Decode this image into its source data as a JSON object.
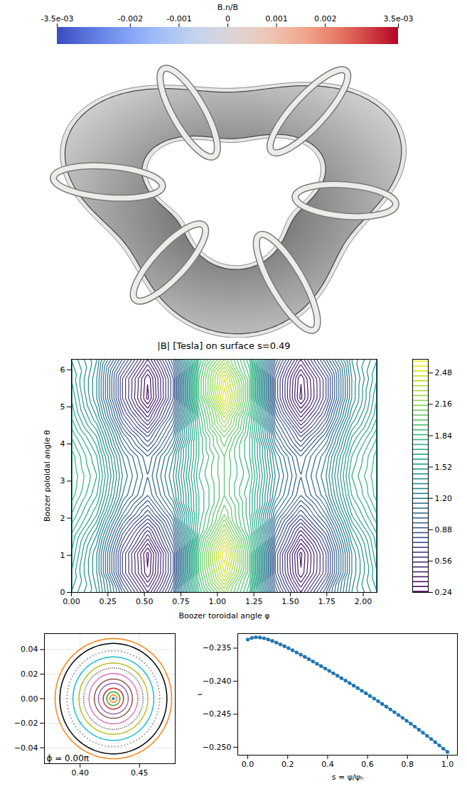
{
  "chart_data": [
    {
      "type": "surface",
      "colorbar": {
        "label": "B.n/B",
        "range": [
          -0.0035,
          0.0035
        ],
        "ticks": [
          {
            "value": -0.0035,
            "label": "-3.5e-03"
          },
          -0.002,
          -0.001,
          0,
          0.001,
          0.002,
          {
            "value": 0.0035,
            "label": "3.5e-03"
          }
        ]
      }
    },
    {
      "type": "contour",
      "title": "|B| [Tesla] on surface s=0.49",
      "x_label": "Boozer toroidal angle φ",
      "y_label": "Boozer poloidal angle θ",
      "x": [
        0,
        0.1745,
        0.349,
        0.5236,
        0.6981,
        0.8727,
        1.0472,
        1.2217,
        1.3963,
        1.5708,
        1.7453,
        1.9199,
        2.0944
      ],
      "y": [
        0,
        0.5236,
        1.0472,
        1.5708,
        2.0944,
        2.618,
        3.1416,
        3.6652,
        4.1888,
        4.7124,
        5.236,
        5.7596,
        6.2832
      ],
      "z": [
        [
          1.55,
          1.35,
          0.9,
          0.5,
          0.95,
          1.8,
          2.2,
          1.8,
          0.95,
          0.5,
          0.9,
          1.35,
          1.55
        ],
        [
          1.6,
          1.3,
          0.7,
          0.3,
          0.8,
          1.9,
          2.45,
          1.9,
          0.8,
          0.3,
          0.7,
          1.3,
          1.6
        ],
        [
          1.65,
          1.3,
          0.7,
          0.28,
          0.8,
          1.9,
          2.55,
          1.9,
          0.8,
          0.28,
          0.7,
          1.3,
          1.65
        ],
        [
          1.7,
          1.4,
          0.85,
          0.5,
          0.95,
          1.8,
          2.3,
          1.8,
          0.95,
          0.5,
          0.85,
          1.4,
          1.7
        ],
        [
          1.8,
          1.55,
          1.05,
          0.75,
          1.1,
          1.75,
          2.1,
          1.75,
          1.1,
          0.75,
          1.05,
          1.55,
          1.8
        ],
        [
          1.88,
          1.65,
          1.2,
          0.95,
          1.25,
          1.75,
          2.0,
          1.75,
          1.25,
          0.95,
          1.2,
          1.65,
          1.88
        ],
        [
          1.9,
          1.7,
          1.25,
          1.0,
          1.3,
          1.8,
          2.0,
          1.8,
          1.3,
          1.0,
          1.25,
          1.7,
          1.9
        ],
        [
          1.88,
          1.65,
          1.2,
          0.95,
          1.25,
          1.75,
          2.0,
          1.75,
          1.25,
          0.95,
          1.2,
          1.65,
          1.88
        ],
        [
          1.8,
          1.55,
          1.05,
          0.75,
          1.1,
          1.75,
          2.1,
          1.75,
          1.1,
          0.75,
          1.05,
          1.55,
          1.8
        ],
        [
          1.7,
          1.4,
          0.85,
          0.5,
          0.95,
          1.8,
          2.3,
          1.8,
          0.95,
          0.5,
          0.85,
          1.4,
          1.7
        ],
        [
          1.65,
          1.3,
          0.7,
          0.28,
          0.8,
          1.9,
          2.55,
          1.9,
          0.8,
          0.28,
          0.7,
          1.3,
          1.65
        ],
        [
          1.6,
          1.3,
          0.7,
          0.3,
          0.8,
          1.9,
          2.45,
          1.9,
          0.8,
          0.3,
          0.7,
          1.3,
          1.6
        ],
        [
          1.55,
          1.35,
          0.9,
          0.5,
          0.95,
          1.8,
          2.2,
          1.8,
          0.95,
          0.5,
          0.9,
          1.35,
          1.55
        ]
      ],
      "xlim": [
        0,
        2.0944
      ],
      "ylim": [
        0,
        6.2832
      ],
      "xticks": [
        {
          "value": 0,
          "label": "0.00"
        },
        0.25,
        {
          "value": 0.5,
          "label": "0.50"
        },
        0.75,
        {
          "value": 1,
          "label": "1.00"
        },
        1.25,
        {
          "value": 1.5,
          "label": "1.50"
        },
        1.75,
        {
          "value": 2,
          "label": "2.00"
        }
      ],
      "yticks": [
        0,
        1,
        2,
        3,
        4,
        5,
        6
      ],
      "grid": false,
      "colorbar": {
        "range": [
          0.24,
          2.62
        ],
        "ticks": [
          0.24,
          0.56,
          0.88,
          {
            "value": 1.2,
            "label": "1.20"
          },
          1.52,
          1.84,
          2.16,
          2.48
        ]
      }
    },
    {
      "type": "poincare",
      "annotation": "ϕ = 0.00π",
      "surfaces": [
        {
          "color": "#1f77b4",
          "x0": 0.428,
          "y0": 0,
          "radius": 0.0008,
          "line_style": "solid"
        },
        {
          "color": "#ff7f0e",
          "x0": 0.428,
          "y0": 0,
          "radius": 0.003,
          "line_style": "solid"
        },
        {
          "color": "#2ca02c",
          "x0": 0.428,
          "y0": 0,
          "radius": 0.0055,
          "line_style": "solid"
        },
        {
          "color": "#d62728",
          "x0": 0.428,
          "y0": 0,
          "radius": 0.0085,
          "line_style": "solid"
        },
        {
          "color": "#9467bd",
          "x0": 0.428,
          "y0": 0,
          "radius": 0.0125,
          "line_style": "solid"
        },
        {
          "color": "#8c564b",
          "x0": 0.428,
          "y0": 0,
          "radius": 0.016,
          "line_style": "solid"
        },
        {
          "color": "#e377c2",
          "x0": 0.428,
          "y0": 0,
          "radius": 0.0205,
          "line_style": "solid"
        },
        {
          "color": "#7f7f7f",
          "x0": 0.428,
          "y0": 0,
          "radius": 0.025,
          "line_style": "dotted"
        },
        {
          "color": "#bcbd22",
          "x0": 0.428,
          "y0": 0,
          "radius": 0.029,
          "line_style": "solid"
        },
        {
          "color": "#17becf",
          "x0": 0.428,
          "y0": 0,
          "radius": 0.034,
          "line_style": "solid"
        },
        {
          "color": "#7f7f7f",
          "x0": 0.428,
          "y0": 0,
          "radius": 0.039,
          "line_style": "dotted"
        },
        {
          "color": "#000000",
          "x0": 0.428,
          "y0": 0,
          "radius": 0.045,
          "line_style": "solid"
        },
        {
          "color": "#ff7f0e",
          "x0": 0.428,
          "y0": 0,
          "radius": 0.049,
          "line_style": "solid"
        }
      ],
      "xlim": [
        0.37,
        0.48
      ],
      "ylim": [
        -0.053,
        0.053
      ],
      "xticks": [
        {
          "value": 0.4,
          "label": "0.40"
        },
        {
          "value": 0.45,
          "label": "0.45"
        }
      ],
      "yticks": [
        {
          "value": -0.04,
          "label": "−0.04"
        },
        {
          "value": -0.02,
          "label": "−0.02"
        },
        {
          "value": 0,
          "label": "0.00"
        },
        0.02,
        0.04
      ],
      "grid": true
    },
    {
      "type": "line",
      "marker": "circle",
      "color": "#1f77b4",
      "x_label": "s = ψ/ψₕ",
      "y_label": "ι",
      "x": [
        0,
        0.0204,
        0.0408,
        0.0612,
        0.0816,
        0.102,
        0.1224,
        0.1429,
        0.1633,
        0.1837,
        0.2041,
        0.2245,
        0.2449,
        0.2653,
        0.2857,
        0.3061,
        0.3265,
        0.3469,
        0.3673,
        0.3878,
        0.4082,
        0.4286,
        0.449,
        0.4694,
        0.4898,
        0.5102,
        0.5306,
        0.551,
        0.5714,
        0.5918,
        0.6122,
        0.6327,
        0.6531,
        0.6735,
        0.6939,
        0.7143,
        0.7347,
        0.7551,
        0.7755,
        0.7959,
        0.8163,
        0.8367,
        0.8571,
        0.8776,
        0.898,
        0.9184,
        0.9388,
        0.9592,
        0.9796,
        1
      ],
      "values": [
        -0.2337,
        -0.23345,
        -0.23335,
        -0.23338,
        -0.2335,
        -0.23368,
        -0.2339,
        -0.23415,
        -0.23442,
        -0.2347,
        -0.235,
        -0.23532,
        -0.23565,
        -0.23598,
        -0.23632,
        -0.23667,
        -0.23702,
        -0.23737,
        -0.23772,
        -0.23808,
        -0.23844,
        -0.2388,
        -0.23917,
        -0.23954,
        -0.23991,
        -0.24029,
        -0.24067,
        -0.24105,
        -0.24144,
        -0.24183,
        -0.24223,
        -0.24263,
        -0.24303,
        -0.24344,
        -0.24385,
        -0.24427,
        -0.24469,
        -0.24512,
        -0.24555,
        -0.24599,
        -0.24643,
        -0.24688,
        -0.24734,
        -0.2478,
        -0.24827,
        -0.24875,
        -0.24923,
        -0.24972,
        -0.25021,
        -0.25071
      ],
      "xlim": [
        -0.05,
        1.05
      ],
      "ylim": [
        -0.2512,
        -0.2328
      ],
      "xticks": [
        {
          "value": 0,
          "label": "0.0"
        },
        0.2,
        0.4,
        0.6,
        0.8,
        {
          "value": 1,
          "label": "1.0"
        }
      ],
      "yticks": [
        {
          "value": -0.235,
          "label": "−0.235"
        },
        {
          "value": -0.24,
          "label": "−0.240"
        },
        {
          "value": -0.245,
          "label": "−0.245"
        },
        {
          "value": -0.25,
          "label": "−0.250"
        }
      ],
      "grid": false
    }
  ]
}
